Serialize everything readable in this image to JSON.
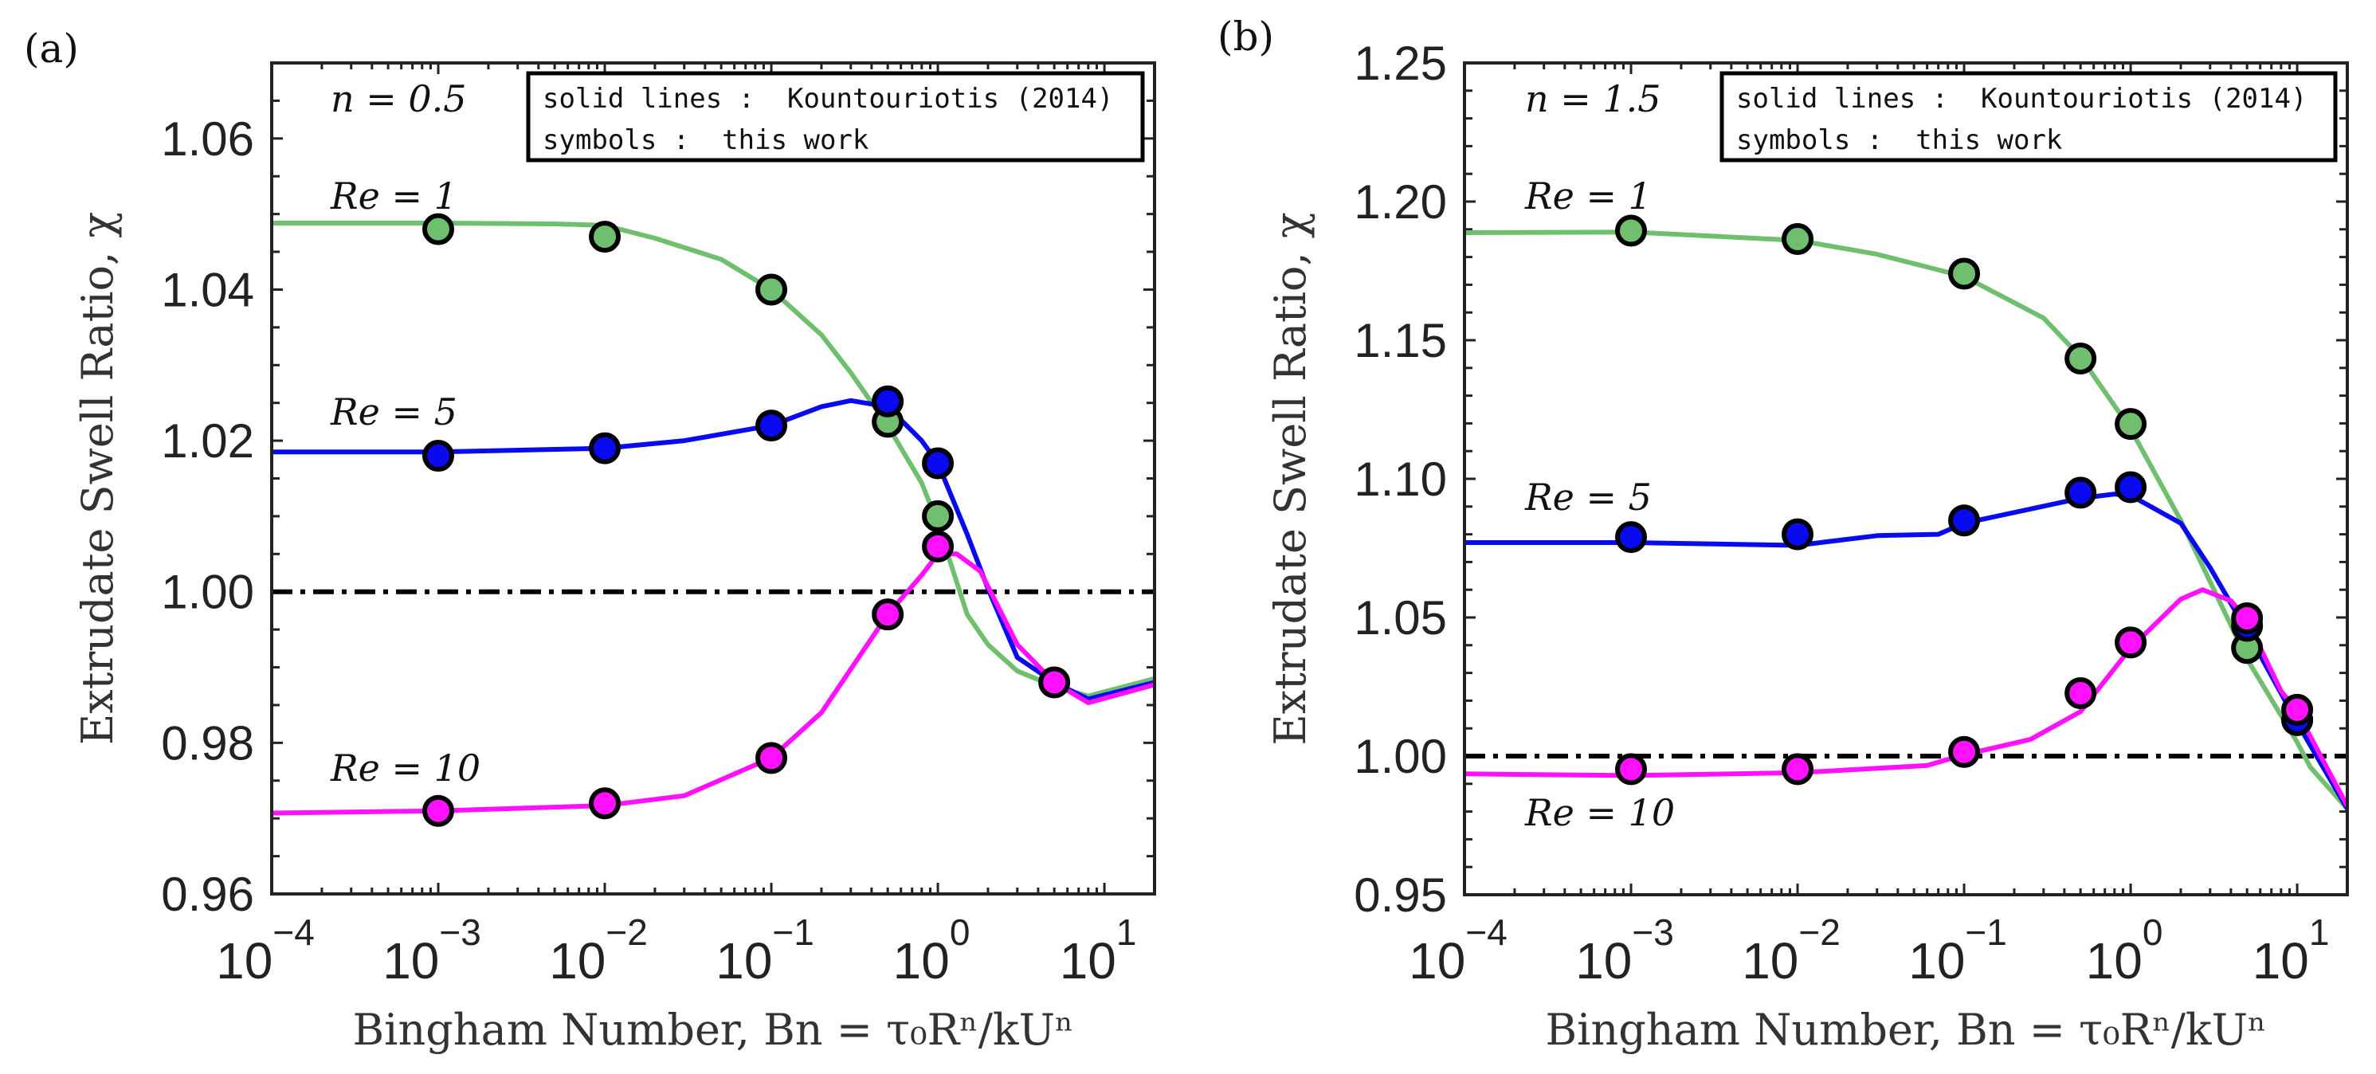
{
  "colors": {
    "re1": "#6fbf6f",
    "re5": "#0a0af0",
    "re10": "#ff10ff",
    "reference": "#000000",
    "axis": "#222222"
  },
  "chart_data": [
    {
      "type": "line",
      "panel_label": "(a)",
      "annotation": "n = 0.5",
      "xlabel": "Bingham Number, Bn = τ₀Rⁿ/kUⁿ",
      "ylabel": "Extrudate Swell Ratio, χ",
      "xscale": "log",
      "xlim": [
        0.0001,
        20
      ],
      "ylim": [
        0.96,
        1.07
      ],
      "yticks": [
        "0.96",
        "0.98",
        "1.00",
        "1.02",
        "1.04",
        "1.06"
      ],
      "xticks": [
        {
          "base": "10",
          "exp": "−4",
          "value": 0.0001
        },
        {
          "base": "10",
          "exp": "−3",
          "value": 0.001
        },
        {
          "base": "10",
          "exp": "−2",
          "value": 0.01
        },
        {
          "base": "10",
          "exp": "−1",
          "value": 0.1
        },
        {
          "base": "10",
          "exp": "0",
          "value": 1
        },
        {
          "base": "10",
          "exp": "1",
          "value": 10
        }
      ],
      "legend": {
        "placement": "top-right",
        "lines": [
          "solid lines :  Kountouriotis (2014)",
          "symbols :  this work"
        ]
      },
      "reference_line": {
        "y": 1.0,
        "style": "dash-dot"
      },
      "series": [
        {
          "name": "Re = 1",
          "color_key": "re1",
          "line": {
            "x": [
              0.0001,
              0.001,
              0.005,
              0.01,
              0.02,
              0.05,
              0.1,
              0.2,
              0.3,
              0.5,
              0.8,
              1.0,
              1.5,
              2,
              3,
              5,
              8,
              20
            ],
            "y": [
              1.0488,
              1.0488,
              1.0487,
              1.0485,
              1.0468,
              1.044,
              1.04,
              1.034,
              1.029,
              1.022,
              1.0144,
              1.009,
              0.997,
              0.993,
              0.9895,
              0.9875,
              0.9862,
              0.9885
            ]
          },
          "points": {
            "x": [
              0.001,
              0.01,
              0.1,
              0.5,
              1.0
            ],
            "y": [
              1.048,
              1.047,
              1.04,
              1.0225,
              1.01
            ]
          }
        },
        {
          "name": "Re = 5",
          "color_key": "re5",
          "line": {
            "x": [
              0.0001,
              0.001,
              0.01,
              0.03,
              0.1,
              0.2,
              0.3,
              0.5,
              0.8,
              1.0,
              1.5,
              2,
              3,
              5,
              8,
              20
            ],
            "y": [
              1.0185,
              1.0185,
              1.019,
              1.02,
              1.022,
              1.0245,
              1.0253,
              1.0245,
              1.02,
              1.017,
              1.0076,
              1.0004,
              0.9913,
              0.988,
              0.9858,
              0.988
            ]
          },
          "points": {
            "x": [
              0.001,
              0.01,
              0.1,
              0.5,
              1.0
            ],
            "y": [
              1.018,
              1.019,
              1.022,
              1.0252,
              1.017
            ]
          }
        },
        {
          "name": "Re = 10",
          "color_key": "re10",
          "line": {
            "x": [
              0.0001,
              0.001,
              0.01,
              0.03,
              0.1,
              0.2,
              0.5,
              0.8,
              1.0,
              1.3,
              1.8,
              3,
              5,
              8,
              20
            ],
            "y": [
              0.9707,
              0.971,
              0.9717,
              0.973,
              0.978,
              0.984,
              0.997,
              1.0022,
              1.005,
              1.005,
              1.0027,
              0.993,
              0.988,
              0.9853,
              0.9877
            ]
          },
          "points": {
            "x": [
              0.001,
              0.01,
              0.1,
              0.5,
              1.0,
              5.0
            ],
            "y": [
              0.971,
              0.972,
              0.978,
              0.997,
              1.006,
              0.988
            ]
          }
        }
      ]
    },
    {
      "type": "line",
      "panel_label": "(b)",
      "annotation": "n = 1.5",
      "xlabel": "Bingham Number, Bn = τ₀Rⁿ/kUⁿ",
      "ylabel": "Extrudate Swell Ratio, χ",
      "xscale": "log",
      "xlim": [
        0.0001,
        20
      ],
      "ylim": [
        0.95,
        1.25
      ],
      "yticks": [
        "0.95",
        "1.00",
        "1.05",
        "1.10",
        "1.15",
        "1.20",
        "1.25"
      ],
      "xticks": [
        {
          "base": "10",
          "exp": "−4",
          "value": 0.0001
        },
        {
          "base": "10",
          "exp": "−3",
          "value": 0.001
        },
        {
          "base": "10",
          "exp": "−2",
          "value": 0.01
        },
        {
          "base": "10",
          "exp": "−1",
          "value": 0.1
        },
        {
          "base": "10",
          "exp": "0",
          "value": 1
        },
        {
          "base": "10",
          "exp": "1",
          "value": 10
        }
      ],
      "legend": {
        "placement": "top-right",
        "lines": [
          "solid lines :  Kountouriotis (2014)",
          "symbols :  this work"
        ]
      },
      "reference_line": {
        "y": 1.0,
        "style": "dash-dot"
      },
      "series": [
        {
          "name": "Re = 1",
          "color_key": "re1",
          "line": {
            "x": [
              0.0001,
              0.001,
              0.01,
              0.03,
              0.1,
              0.3,
              0.5,
              1,
              2,
              5,
              10,
              12,
              20
            ],
            "y": [
              1.1888,
              1.189,
              1.186,
              1.181,
              1.173,
              1.158,
              1.144,
              1.118,
              1.085,
              1.035,
              1.005,
              0.996,
              0.981
            ]
          },
          "points": {
            "x": [
              0.001,
              0.01,
              0.1,
              0.5,
              1.0,
              5.0,
              10.0
            ],
            "y": [
              1.1895,
              1.1865,
              1.174,
              1.1434,
              1.1198,
              1.039,
              1.013
            ]
          }
        },
        {
          "name": "Re = 5",
          "color_key": "re5",
          "line": {
            "x": [
              0.0001,
              0.001,
              0.01,
              0.03,
              0.07,
              0.1,
              0.5,
              0.8,
              1,
              2,
              3,
              5,
              10,
              20
            ],
            "y": [
              1.077,
              1.077,
              1.076,
              1.0795,
              1.08,
              1.084,
              1.093,
              1.0945,
              1.094,
              1.084,
              1.068,
              1.045,
              1.012,
              0.981
            ]
          },
          "points": {
            "x": [
              0.001,
              0.01,
              0.1,
              0.5,
              1.0,
              5.0,
              10.0
            ],
            "y": [
              1.079,
              1.08,
              1.085,
              1.095,
              1.097,
              1.047,
              1.013
            ]
          }
        },
        {
          "name": "Re = 10",
          "color_key": "re10",
          "line": {
            "x": [
              0.0001,
              0.001,
              0.01,
              0.06,
              0.1,
              0.25,
              0.5,
              1,
              2,
              2.7,
              4,
              5,
              8,
              10,
              20
            ],
            "y": [
              0.9936,
              0.993,
              0.994,
              0.9966,
              1.0005,
              1.006,
              1.016,
              1.039,
              1.0566,
              1.06,
              1.056,
              1.049,
              1.0235,
              1.016,
              0.982
            ]
          },
          "points": {
            "x": [
              0.001,
              0.01,
              0.1,
              0.5,
              1.0,
              5.0,
              10.0
            ],
            "y": [
              0.9953,
              0.9953,
              1.0015,
              1.0227,
              1.041,
              1.0497,
              1.0167
            ]
          }
        }
      ]
    }
  ]
}
